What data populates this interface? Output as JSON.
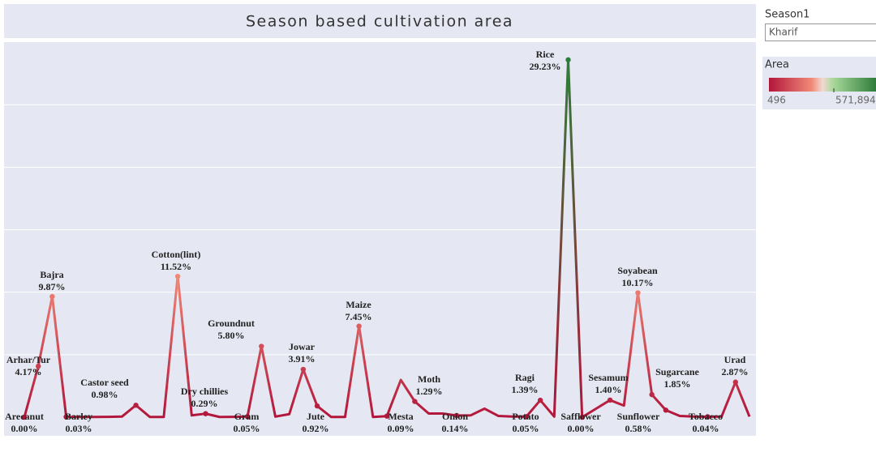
{
  "chart_data": {
    "type": "line",
    "title": "Season based cultivation area",
    "categories": [
      "Arecanut",
      "Arhar/Tur",
      "Bajra",
      "Barley",
      null,
      null,
      null,
      null,
      "Castor seed",
      null,
      null,
      "Cotton(lint)",
      null,
      "Dry chillies",
      null,
      null,
      "Gram",
      "Groundnut",
      null,
      null,
      "Jowar",
      "Jute",
      null,
      null,
      "Maize",
      null,
      "Mesta",
      null,
      "Moth",
      null,
      null,
      "Onion",
      null,
      null,
      null,
      null,
      "Potato",
      "Ragi",
      null,
      "Rice",
      "Safflower",
      null,
      "Sesamum",
      null,
      "Soyabean",
      "Sugarcane",
      "Sunflower",
      null,
      null,
      "Tobacco",
      null,
      "Urad",
      null
    ],
    "values": [
      0.0,
      4.17,
      9.87,
      0.03,
      0.02,
      0.02,
      0.03,
      0.05,
      0.98,
      0.02,
      0.02,
      11.52,
      0.15,
      0.29,
      0.02,
      0.03,
      0.05,
      5.8,
      0.05,
      0.25,
      3.91,
      0.92,
      0.02,
      0.02,
      7.45,
      0.02,
      0.09,
      3.05,
      1.29,
      0.3,
      0.3,
      0.14,
      0.15,
      0.7,
      0.1,
      0.05,
      0.05,
      1.39,
      0.05,
      29.23,
      0.0,
      0.7,
      1.4,
      0.95,
      10.17,
      1.85,
      0.58,
      0.1,
      0.05,
      0.04,
      0.05,
      2.87,
      0.05
    ],
    "value_labels": [
      "0.00%",
      "4.17%",
      "9.87%",
      "0.03%",
      null,
      null,
      null,
      null,
      "0.98%",
      null,
      null,
      "11.52%",
      null,
      "0.29%",
      null,
      null,
      "0.05%",
      "5.80%",
      null,
      null,
      "3.91%",
      "0.92%",
      null,
      null,
      "7.45%",
      null,
      "0.09%",
      null,
      "1.29%",
      null,
      null,
      "0.14%",
      null,
      null,
      null,
      null,
      "0.05%",
      "1.39%",
      null,
      "29.23%",
      "0.00%",
      null,
      "1.40%",
      null,
      "10.17%",
      "1.85%",
      "0.58%",
      null,
      null,
      "0.04%",
      null,
      "2.87%",
      null
    ],
    "ylim": [
      -1.52,
      30.68
    ],
    "yticks": [
      5.11,
      10.22,
      15.33,
      20.44,
      25.56
    ],
    "grid": true
  },
  "filter": {
    "label": "Season1",
    "value": "Kharif"
  },
  "color_legend": {
    "title": "Area",
    "range": [
      496,
      {
        "value": 571894,
        "label": "571,894"
      }
    ]
  }
}
